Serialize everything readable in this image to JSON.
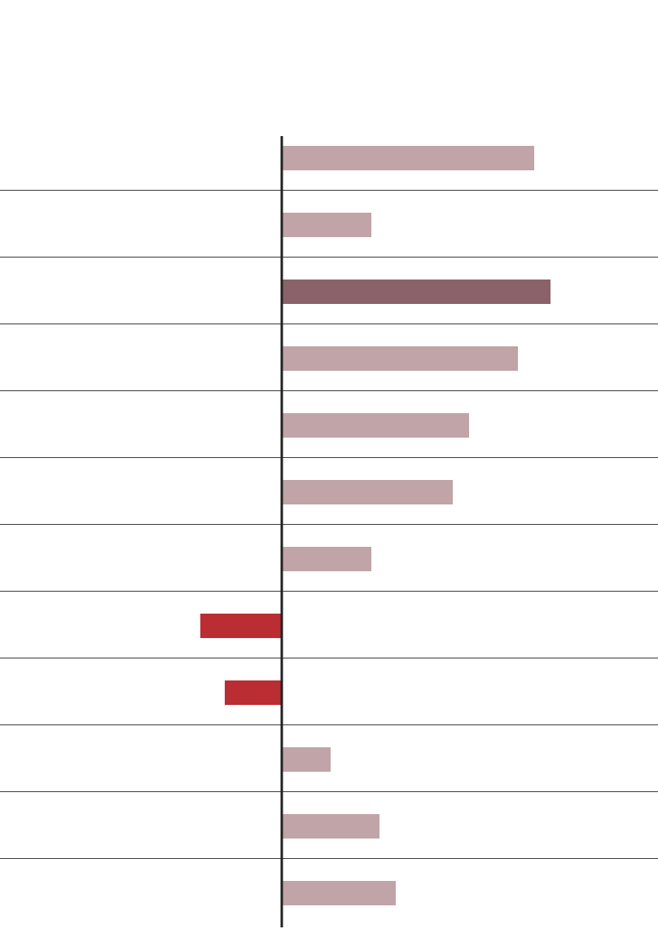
{
  "chart_data": {
    "type": "bar",
    "orientation": "horizontal",
    "categories": [
      null,
      null,
      null,
      null,
      null,
      null,
      null,
      null,
      null,
      null,
      null,
      null
    ],
    "values": [
      31,
      11,
      33,
      29,
      23,
      21,
      11,
      -10,
      -7,
      6,
      12,
      14
    ],
    "colors": [
      "#c0a4a7",
      "#c0a4a7",
      "#8b626a",
      "#c0a4a7",
      "#c0a4a7",
      "#c0a4a7",
      "#c0a4a7",
      "#b92d33",
      "#b92d33",
      "#c0a4a7",
      "#c0a4a7",
      "#c0a4a7"
    ],
    "xlim": [
      -34.6,
      46.2
    ]
  }
}
